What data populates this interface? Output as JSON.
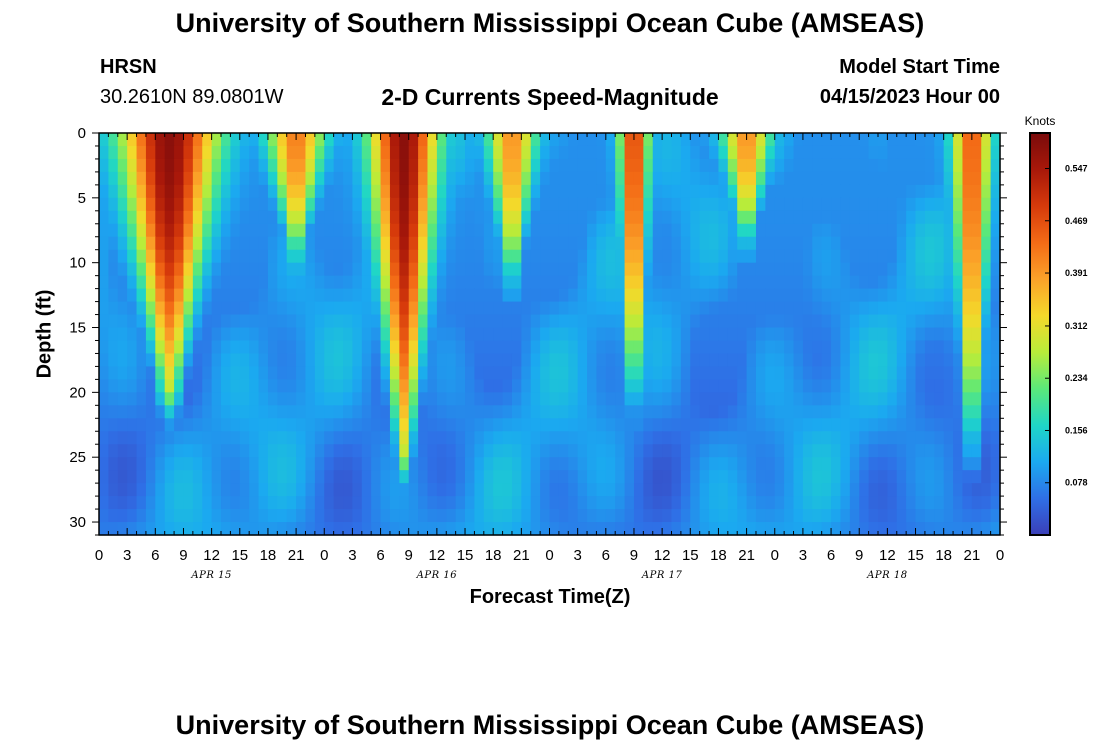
{
  "header": {
    "title": "University of Southern Mississippi Ocean Cube (AMSEAS)",
    "station": "HRSN",
    "coords": "30.2610N  89.0801W",
    "subtitle": "2-D Currents Speed-Magnitude",
    "model_start_label": "Model Start Time",
    "model_start_value": "04/15/2023 Hour 00"
  },
  "footer": {
    "title": "University of Southern Mississippi Ocean Cube (AMSEAS)"
  },
  "chart_data": {
    "type": "heatmap",
    "title": "2-D Currents Speed-Magnitude",
    "xlabel": "Forecast Time(Z)",
    "ylabel": "Depth (ft)",
    "x_tick_labels": [
      "0",
      "3",
      "6",
      "9",
      "12",
      "15",
      "18",
      "21",
      "0",
      "3",
      "6",
      "9",
      "12",
      "15",
      "18",
      "21",
      "0",
      "3",
      "6",
      "9",
      "12",
      "15",
      "18",
      "21",
      "0",
      "3",
      "6",
      "9",
      "12",
      "15",
      "18",
      "21",
      "0"
    ],
    "x_hours_range": [
      0,
      96
    ],
    "date_labels": [
      {
        "label": "APR 15",
        "hour": 12
      },
      {
        "label": "APR 16",
        "hour": 36
      },
      {
        "label": "APR 17",
        "hour": 60
      },
      {
        "label": "APR 18",
        "hour": 84
      }
    ],
    "ylim": [
      0,
      31
    ],
    "y_ticks": [
      "0",
      "5",
      "10",
      "15",
      "20",
      "25",
      "30"
    ],
    "y_inverted": true,
    "colorbar": {
      "unit": "Knots",
      "range": [
        0,
        0.6
      ],
      "ticks": [
        "0.547",
        "0.469",
        "0.391",
        "0.312",
        "0.234",
        "0.156",
        "0.078"
      ],
      "colors": [
        "#3b3fb8",
        "#2f6fe6",
        "#1ba9f0",
        "#1fd6c7",
        "#5ae87a",
        "#b8ec3a",
        "#f4d92a",
        "#fba229",
        "#f36b16",
        "#d63a0b",
        "#a8180a",
        "#7a0b0b"
      ]
    },
    "features": [
      {
        "peak_hour": 7.5,
        "surface_speed": 0.58,
        "bottom_depth_ft": 19,
        "width_hours": 5
      },
      {
        "peak_hour": 21,
        "surface_speed": 0.42,
        "bottom_depth_ft": 9,
        "width_hours": 3
      },
      {
        "peak_hour": 32.5,
        "surface_speed": 0.58,
        "bottom_depth_ft": 24,
        "width_hours": 3.5
      },
      {
        "peak_hour": 44,
        "surface_speed": 0.4,
        "bottom_depth_ft": 11,
        "width_hours": 2.5
      },
      {
        "peak_hour": 57,
        "surface_speed": 0.5,
        "bottom_depth_ft": 22,
        "width_hours": 1.5
      },
      {
        "peak_hour": 69,
        "surface_speed": 0.4,
        "bottom_depth_ft": 8,
        "width_hours": 2.5
      },
      {
        "peak_hour": 93,
        "surface_speed": 0.46,
        "bottom_depth_ft": 24,
        "width_hours": 2
      }
    ]
  }
}
